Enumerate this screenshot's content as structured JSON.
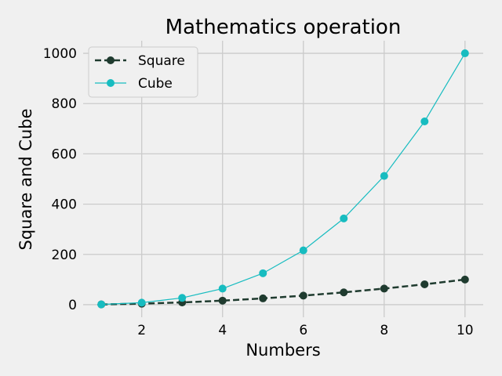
{
  "chart_data": {
    "type": "line",
    "title": "Mathematics operation",
    "xlabel": "Numbers",
    "ylabel": "Square and Cube",
    "x": [
      1,
      2,
      3,
      4,
      5,
      6,
      7,
      8,
      9,
      10
    ],
    "xlim": [
      0.55,
      10.45
    ],
    "ylim": [
      -50,
      1050
    ],
    "xticks": [
      2,
      4,
      6,
      8,
      10
    ],
    "yticks": [
      0,
      200,
      400,
      600,
      800,
      1000
    ],
    "grid": true,
    "legend_position": "top-left",
    "series": [
      {
        "name": "Square",
        "values": [
          1,
          4,
          9,
          16,
          25,
          36,
          49,
          64,
          81,
          100
        ],
        "color": "#1f3b2f",
        "line_style": "dashed",
        "marker": "circle"
      },
      {
        "name": "Cube",
        "values": [
          1,
          8,
          27,
          64,
          125,
          216,
          343,
          512,
          729,
          1000
        ],
        "color": "#17bcc0",
        "line_style": "solid",
        "marker": "circle"
      }
    ]
  }
}
